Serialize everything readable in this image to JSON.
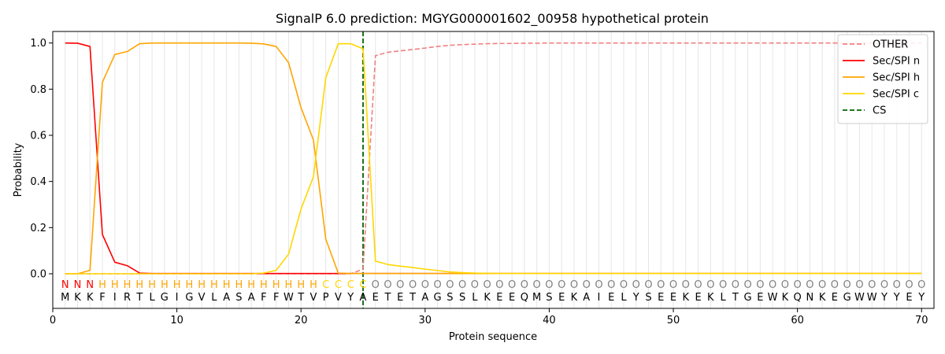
{
  "chart_data": {
    "type": "line",
    "title": "SignalP 6.0 prediction: MGYG000001602_00958 hypothetical protein",
    "xlabel": "Protein sequence",
    "ylabel": "Probability",
    "xlim": [
      0,
      71
    ],
    "ylim": [
      -0.15,
      1.05
    ],
    "xticks": [
      0,
      10,
      20,
      30,
      40,
      50,
      60,
      70
    ],
    "yticks": [
      0.0,
      0.2,
      0.4,
      0.6,
      0.8,
      1.0
    ],
    "ytick_labels": [
      "0.0",
      "0.2",
      "0.4",
      "0.6",
      "0.8",
      "1.0"
    ],
    "grid": "vertical lines at every residue",
    "legend_position": "top-right",
    "sequence": [
      "M",
      "K",
      "K",
      "F",
      "I",
      "R",
      "T",
      "L",
      "G",
      "I",
      "G",
      "V",
      "L",
      "A",
      "S",
      "A",
      "F",
      "F",
      "W",
      "T",
      "V",
      "P",
      "V",
      "Y",
      "A",
      "E",
      "T",
      "E",
      "T",
      "A",
      "G",
      "S",
      "S",
      "L",
      "K",
      "E",
      "E",
      "Q",
      "M",
      "S",
      "E",
      "K",
      "A",
      "I",
      "E",
      "L",
      "Y",
      "S",
      "E",
      "E",
      "K",
      "E",
      "K",
      "L",
      "T",
      "G",
      "E",
      "W",
      "K",
      "Q",
      "N",
      "K",
      "E",
      "G",
      "W",
      "W",
      "Y",
      "Y",
      "E",
      "Y"
    ],
    "labels": [
      "N",
      "N",
      "N",
      "H",
      "H",
      "H",
      "H",
      "H",
      "H",
      "H",
      "H",
      "H",
      "H",
      "H",
      "H",
      "H",
      "H",
      "H",
      "H",
      "H",
      "H",
      "C",
      "C",
      "C",
      "C",
      "O",
      "O",
      "O",
      "O",
      "O",
      "O",
      "O",
      "O",
      "O",
      "O",
      "O",
      "O",
      "O",
      "O",
      "O",
      "O",
      "O",
      "O",
      "O",
      "O",
      "O",
      "O",
      "O",
      "O",
      "O",
      "O",
      "O",
      "O",
      "O",
      "O",
      "O",
      "O",
      "O",
      "O",
      "O",
      "O",
      "O",
      "O",
      "O",
      "O",
      "O",
      "O",
      "O",
      "O",
      "O"
    ],
    "label_colors": {
      "N": "#ff0000",
      "H": "#ffa500",
      "C": "#ffd700",
      "O": "#808080"
    },
    "x": [
      1,
      2,
      3,
      4,
      5,
      6,
      7,
      8,
      9,
      10,
      11,
      12,
      13,
      14,
      15,
      16,
      17,
      18,
      19,
      20,
      21,
      22,
      23,
      24,
      25,
      26,
      27,
      28,
      29,
      30,
      31,
      32,
      33,
      34,
      35,
      36,
      37,
      38,
      39,
      40,
      41,
      42,
      43,
      44,
      45,
      46,
      47,
      48,
      49,
      50,
      51,
      52,
      53,
      54,
      55,
      56,
      57,
      58,
      59,
      60,
      61,
      62,
      63,
      64,
      65,
      66,
      67,
      68,
      69,
      70
    ],
    "series": [
      {
        "name": "OTHER",
        "color": "#f08080",
        "dash": "dashed",
        "values": [
          0,
          0,
          0,
          0,
          0,
          0,
          0,
          0,
          0,
          0,
          0,
          0,
          0,
          0,
          0,
          0,
          0,
          0,
          0,
          0,
          0,
          0,
          0,
          0,
          0.02,
          0.945,
          0.96,
          0.966,
          0.972,
          0.978,
          0.985,
          0.99,
          0.993,
          0.995,
          0.997,
          0.998,
          0.998,
          0.999,
          0.999,
          1,
          1,
          1,
          1,
          1,
          1,
          1,
          1,
          1,
          1,
          1,
          1,
          1,
          1,
          1,
          1,
          1,
          1,
          1,
          1,
          1,
          1,
          1,
          1,
          1,
          1,
          1,
          1,
          1,
          1,
          1
        ]
      },
      {
        "name": "Sec/SPI n",
        "color": "#ff0000",
        "dash": "solid",
        "values": [
          1.0,
          0.999,
          0.985,
          0.17,
          0.05,
          0.035,
          0.003,
          0.001,
          0.001,
          0.001,
          0.001,
          0.001,
          0.001,
          0.001,
          0.001,
          0.001,
          0.001,
          0.001,
          0.001,
          0.001,
          0.001,
          0.001,
          0.001,
          0.001,
          0.001,
          0.001,
          0.001,
          0.001,
          0.001,
          0.001,
          0.001,
          0.001,
          0.001,
          0.001,
          0.001,
          0.001,
          0.001,
          0.001,
          0.001,
          0.001,
          0.001,
          0.001,
          0.001,
          0.001,
          0.001,
          0.001,
          0.001,
          0.001,
          0.001,
          0.001,
          0.001,
          0.001,
          0.001,
          0.001,
          0.001,
          0.001,
          0.001,
          0.001,
          0.001,
          0.001,
          0.001,
          0.001,
          0.001,
          0.001,
          0.001,
          0.001,
          0.001,
          0.001,
          0.001,
          0.001
        ]
      },
      {
        "name": "Sec/SPI h",
        "color": "#ffa500",
        "dash": "solid",
        "values": [
          0,
          0,
          0.015,
          0.83,
          0.95,
          0.963,
          0.997,
          1,
          1,
          1,
          1,
          1,
          1,
          1,
          1,
          0.999,
          0.996,
          0.985,
          0.915,
          0.72,
          0.58,
          0.15,
          0.003,
          0.001,
          0.001,
          0.001,
          0.001,
          0.001,
          0.001,
          0.001,
          0.001,
          0.001,
          0.001,
          0.001,
          0.001,
          0.001,
          0.001,
          0.001,
          0.001,
          0.001,
          0.001,
          0.001,
          0.001,
          0.001,
          0.001,
          0.001,
          0.001,
          0.001,
          0.001,
          0.001,
          0.001,
          0.001,
          0.001,
          0.001,
          0.001,
          0.001,
          0.001,
          0.001,
          0.001,
          0.001,
          0.001,
          0.001,
          0.001,
          0.001,
          0.001,
          0.001,
          0.001,
          0.001,
          0.001,
          0.001
        ]
      },
      {
        "name": "Sec/SPI c",
        "color": "#ffd700",
        "dash": "solid",
        "values": [
          0,
          0,
          0,
          0,
          0,
          0,
          0,
          0,
          0,
          0,
          0,
          0,
          0,
          0,
          0,
          0,
          0.003,
          0.015,
          0.085,
          0.28,
          0.42,
          0.85,
          0.997,
          0.997,
          0.975,
          0.055,
          0.04,
          0.033,
          0.027,
          0.02,
          0.014,
          0.008,
          0.005,
          0.003,
          0.002,
          0.001,
          0.001,
          0.001,
          0.001,
          0.001,
          0.001,
          0.001,
          0.001,
          0.001,
          0.001,
          0.001,
          0.001,
          0.001,
          0.001,
          0.001,
          0.001,
          0.001,
          0.001,
          0.001,
          0.001,
          0.001,
          0.001,
          0.001,
          0.001,
          0.001,
          0.001,
          0.001,
          0.001,
          0.001,
          0.001,
          0.001,
          0.001,
          0.001,
          0.001,
          0.001
        ]
      }
    ],
    "cs": {
      "name": "CS",
      "x": 25,
      "color": "#006400"
    }
  }
}
